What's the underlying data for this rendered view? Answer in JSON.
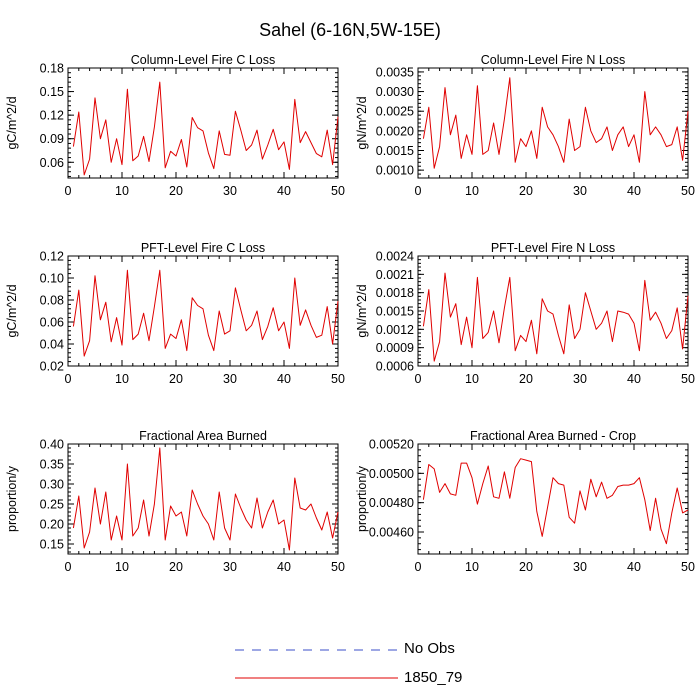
{
  "title": "Sahel (6-16N,5W-15E)",
  "legend": [
    {
      "label": "No Obs",
      "color": "#3b4fc8",
      "dash": true
    },
    {
      "label": "1850_79",
      "color": "#e00000",
      "dash": false
    }
  ],
  "chart_data": [
    {
      "type": "line",
      "title": "Column-Level Fire C Loss",
      "ylabel": "gC/m^2/d",
      "xlim": [
        0,
        50
      ],
      "ylim": [
        0.04,
        0.18
      ],
      "xticks": [
        0,
        10,
        20,
        30,
        40,
        50
      ],
      "xtick_labels": [
        "0",
        "10",
        "20",
        "30",
        "40",
        "50"
      ],
      "yticks": [
        0.06,
        0.09,
        0.12,
        0.15,
        0.18
      ],
      "ytick_labels": [
        "0.06",
        "0.09",
        "0.12",
        "0.15",
        "0.18"
      ],
      "series": [
        {
          "name": "1850_79",
          "color": "#e00000",
          "x": [
            1,
            2,
            3,
            4,
            5,
            6,
            7,
            8,
            9,
            10,
            11,
            12,
            13,
            14,
            15,
            16,
            17,
            18,
            19,
            20,
            21,
            22,
            23,
            24,
            25,
            26,
            27,
            28,
            29,
            30,
            31,
            32,
            33,
            34,
            35,
            36,
            37,
            38,
            39,
            40,
            41,
            42,
            43,
            44,
            45,
            46,
            47,
            48,
            49,
            50
          ],
          "values": [
            0.08,
            0.124,
            0.044,
            0.064,
            0.142,
            0.09,
            0.114,
            0.06,
            0.09,
            0.057,
            0.153,
            0.062,
            0.068,
            0.093,
            0.061,
            0.105,
            0.162,
            0.053,
            0.074,
            0.068,
            0.089,
            0.054,
            0.117,
            0.104,
            0.1,
            0.072,
            0.052,
            0.1,
            0.07,
            0.069,
            0.125,
            0.101,
            0.075,
            0.082,
            0.101,
            0.064,
            0.082,
            0.102,
            0.076,
            0.086,
            0.051,
            0.14,
            0.085,
            0.099,
            0.085,
            0.071,
            0.067,
            0.101,
            0.057,
            0.118
          ]
        }
      ]
    },
    {
      "type": "line",
      "title": "Column-Level Fire N Loss",
      "ylabel": "gN/m^2/d",
      "xlim": [
        0,
        50
      ],
      "ylim": [
        0.0008,
        0.0036
      ],
      "xticks": [
        0,
        10,
        20,
        30,
        40,
        50
      ],
      "xtick_labels": [
        "0",
        "10",
        "20",
        "30",
        "40",
        "50"
      ],
      "yticks": [
        0.001,
        0.0015,
        0.002,
        0.0025,
        0.003,
        0.0035
      ],
      "ytick_labels": [
        "0.0010",
        "0.0015",
        "0.0020",
        "0.0025",
        "0.0030",
        "0.0035"
      ],
      "series": [
        {
          "name": "1850_79",
          "color": "#e00000",
          "x": [
            1,
            2,
            3,
            4,
            5,
            6,
            7,
            8,
            9,
            10,
            11,
            12,
            13,
            14,
            15,
            16,
            17,
            18,
            19,
            20,
            21,
            22,
            23,
            24,
            25,
            26,
            27,
            28,
            29,
            30,
            31,
            32,
            33,
            34,
            35,
            36,
            37,
            38,
            39,
            40,
            41,
            42,
            43,
            44,
            45,
            46,
            47,
            48,
            49,
            50
          ],
          "values": [
            0.0018,
            0.0026,
            0.00105,
            0.0016,
            0.0031,
            0.0019,
            0.0024,
            0.0013,
            0.0019,
            0.0014,
            0.00315,
            0.0014,
            0.0015,
            0.0022,
            0.0014,
            0.0023,
            0.00335,
            0.0012,
            0.0018,
            0.0016,
            0.002,
            0.0013,
            0.0026,
            0.0021,
            0.0019,
            0.0016,
            0.0012,
            0.0023,
            0.0015,
            0.0016,
            0.0026,
            0.002,
            0.0017,
            0.0018,
            0.0021,
            0.0015,
            0.0019,
            0.0021,
            0.0016,
            0.0019,
            0.0012,
            0.003,
            0.0019,
            0.0021,
            0.0019,
            0.0016,
            0.00165,
            0.0021,
            0.00125,
            0.0025
          ]
        }
      ]
    },
    {
      "type": "line",
      "title": "PFT-Level Fire C Loss",
      "ylabel": "gC/m^2/d",
      "xlim": [
        0,
        50
      ],
      "ylim": [
        0.02,
        0.12
      ],
      "xticks": [
        0,
        10,
        20,
        30,
        40,
        50
      ],
      "xtick_labels": [
        "0",
        "10",
        "20",
        "30",
        "40",
        "50"
      ],
      "yticks": [
        0.02,
        0.04,
        0.06,
        0.08,
        0.1,
        0.12
      ],
      "ytick_labels": [
        "0.02",
        "0.04",
        "0.06",
        "0.08",
        "0.10",
        "0.12"
      ],
      "series": [
        {
          "name": "1850_79",
          "color": "#e00000",
          "x": [
            1,
            2,
            3,
            4,
            5,
            6,
            7,
            8,
            9,
            10,
            11,
            12,
            13,
            14,
            15,
            16,
            17,
            18,
            19,
            20,
            21,
            22,
            23,
            24,
            25,
            26,
            27,
            28,
            29,
            30,
            31,
            32,
            33,
            34,
            35,
            36,
            37,
            38,
            39,
            40,
            41,
            42,
            43,
            44,
            45,
            46,
            47,
            48,
            49,
            50
          ],
          "values": [
            0.056,
            0.089,
            0.029,
            0.043,
            0.102,
            0.062,
            0.078,
            0.042,
            0.064,
            0.039,
            0.107,
            0.044,
            0.049,
            0.068,
            0.043,
            0.074,
            0.107,
            0.036,
            0.049,
            0.045,
            0.062,
            0.034,
            0.082,
            0.075,
            0.072,
            0.048,
            0.034,
            0.07,
            0.049,
            0.052,
            0.091,
            0.071,
            0.052,
            0.057,
            0.07,
            0.044,
            0.056,
            0.073,
            0.052,
            0.06,
            0.036,
            0.1,
            0.057,
            0.071,
            0.057,
            0.046,
            0.048,
            0.074,
            0.04,
            0.079
          ]
        }
      ]
    },
    {
      "type": "line",
      "title": "PFT-Level Fire N Loss",
      "ylabel": "gN/m^2/d",
      "xlim": [
        0,
        50
      ],
      "ylim": [
        0.0006,
        0.0024
      ],
      "xticks": [
        0,
        10,
        20,
        30,
        40,
        50
      ],
      "xtick_labels": [
        "0",
        "10",
        "20",
        "30",
        "40",
        "50"
      ],
      "yticks": [
        0.0006,
        0.0009,
        0.0012,
        0.0015,
        0.0018,
        0.0021,
        0.0024
      ],
      "ytick_labels": [
        "0.0006",
        "0.0009",
        "0.0012",
        "0.0015",
        "0.0018",
        "0.0021",
        "0.0024"
      ],
      "series": [
        {
          "name": "1850_79",
          "color": "#e00000",
          "x": [
            1,
            2,
            3,
            4,
            5,
            6,
            7,
            8,
            9,
            10,
            11,
            12,
            13,
            14,
            15,
            16,
            17,
            18,
            19,
            20,
            21,
            22,
            23,
            24,
            25,
            26,
            27,
            28,
            29,
            30,
            31,
            32,
            33,
            34,
            35,
            36,
            37,
            38,
            39,
            40,
            41,
            42,
            43,
            44,
            45,
            46,
            47,
            48,
            49,
            50
          ],
          "values": [
            0.00125,
            0.00185,
            0.00068,
            0.001,
            0.00212,
            0.0014,
            0.00162,
            0.00095,
            0.0014,
            0.0009,
            0.00205,
            0.00105,
            0.00115,
            0.0015,
            0.00098,
            0.00155,
            0.00205,
            0.00085,
            0.0011,
            0.001,
            0.00135,
            0.0008,
            0.0017,
            0.0015,
            0.00145,
            0.0011,
            0.0008,
            0.0016,
            0.00105,
            0.0012,
            0.0018,
            0.0015,
            0.0012,
            0.0013,
            0.0015,
            0.001,
            0.0015,
            0.00148,
            0.00145,
            0.0013,
            0.00085,
            0.002,
            0.00135,
            0.00148,
            0.0013,
            0.00105,
            0.00118,
            0.00155,
            0.00088,
            0.00175
          ]
        }
      ]
    },
    {
      "type": "line",
      "title": "Fractional Area Burned",
      "ylabel": "proportion/y",
      "xlim": [
        0,
        50
      ],
      "ylim": [
        0.125,
        0.4
      ],
      "xticks": [
        0,
        10,
        20,
        30,
        40,
        50
      ],
      "xtick_labels": [
        "0",
        "10",
        "20",
        "30",
        "40",
        "50"
      ],
      "yticks": [
        0.15,
        0.2,
        0.25,
        0.3,
        0.35,
        0.4
      ],
      "ytick_labels": [
        "0.15",
        "0.20",
        "0.25",
        "0.30",
        "0.35",
        "0.40"
      ],
      "series": [
        {
          "name": "1850_79",
          "color": "#e00000",
          "x": [
            1,
            2,
            3,
            4,
            5,
            6,
            7,
            8,
            9,
            10,
            11,
            12,
            13,
            14,
            15,
            16,
            17,
            18,
            19,
            20,
            21,
            22,
            23,
            24,
            25,
            26,
            27,
            28,
            29,
            30,
            31,
            32,
            33,
            34,
            35,
            36,
            37,
            38,
            39,
            40,
            41,
            42,
            43,
            44,
            45,
            46,
            47,
            48,
            49,
            50
          ],
          "values": [
            0.19,
            0.27,
            0.14,
            0.18,
            0.29,
            0.2,
            0.28,
            0.16,
            0.22,
            0.16,
            0.35,
            0.17,
            0.19,
            0.26,
            0.17,
            0.25,
            0.39,
            0.16,
            0.245,
            0.22,
            0.23,
            0.17,
            0.285,
            0.25,
            0.22,
            0.2,
            0.16,
            0.28,
            0.19,
            0.16,
            0.275,
            0.24,
            0.21,
            0.19,
            0.265,
            0.19,
            0.23,
            0.26,
            0.2,
            0.21,
            0.135,
            0.315,
            0.24,
            0.235,
            0.25,
            0.215,
            0.185,
            0.23,
            0.165,
            0.23
          ]
        }
      ]
    },
    {
      "type": "line",
      "title": "Fractional Area Burned - Crop",
      "ylabel": "proportion/y",
      "xlim": [
        0,
        50
      ],
      "ylim": [
        0.00445,
        0.0052
      ],
      "xticks": [
        0,
        10,
        20,
        30,
        40,
        50
      ],
      "xtick_labels": [
        "0",
        "10",
        "20",
        "30",
        "40",
        "50"
      ],
      "yticks": [
        0.0046,
        0.0048,
        0.005,
        0.0052
      ],
      "ytick_labels": [
        "0.00460",
        "0.00480",
        "0.00500",
        "0.00520"
      ],
      "series": [
        {
          "name": "1850_79",
          "color": "#e00000",
          "x": [
            1,
            2,
            3,
            4,
            5,
            6,
            7,
            8,
            9,
            10,
            11,
            12,
            13,
            14,
            15,
            16,
            17,
            18,
            19,
            20,
            21,
            22,
            23,
            24,
            25,
            26,
            27,
            28,
            29,
            30,
            31,
            32,
            33,
            34,
            35,
            36,
            37,
            38,
            39,
            40,
            41,
            42,
            43,
            44,
            45,
            46,
            47,
            48,
            49,
            50
          ],
          "values": [
            0.00482,
            0.00506,
            0.00503,
            0.00487,
            0.00493,
            0.00486,
            0.00485,
            0.00507,
            0.00507,
            0.00497,
            0.00479,
            0.00493,
            0.00505,
            0.00484,
            0.00483,
            0.00501,
            0.00483,
            0.00504,
            0.0051,
            0.00509,
            0.00508,
            0.00474,
            0.00457,
            0.00477,
            0.00497,
            0.00493,
            0.00492,
            0.0047,
            0.00466,
            0.00488,
            0.00475,
            0.00496,
            0.00484,
            0.00494,
            0.00483,
            0.00485,
            0.00491,
            0.00492,
            0.00492,
            0.00493,
            0.00497,
            0.00482,
            0.00461,
            0.00483,
            0.00462,
            0.00452,
            0.00473,
            0.0049,
            0.00473,
            0.00475
          ]
        }
      ]
    }
  ]
}
